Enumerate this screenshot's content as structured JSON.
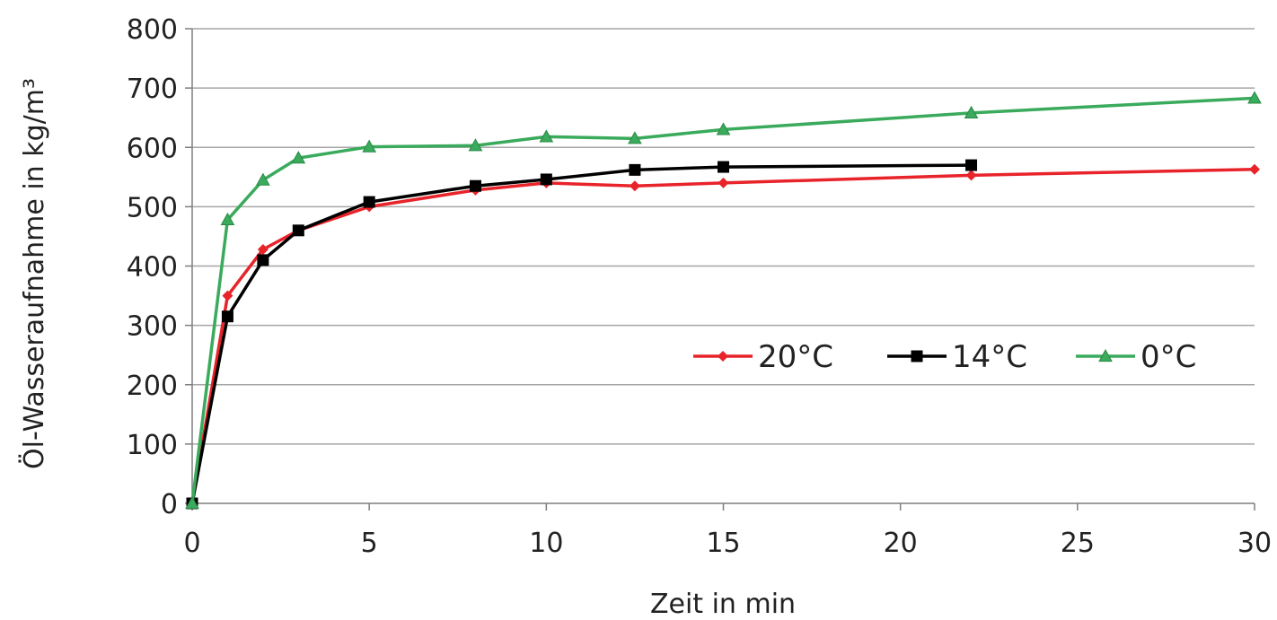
{
  "chart_data": {
    "type": "line",
    "title": "",
    "xlabel": "Zeit in min",
    "ylabel": "Öl-Wasseraufnahme in kg/m³",
    "xlim": [
      0,
      30
    ],
    "ylim": [
      0,
      800
    ],
    "xticks": [
      0,
      5,
      10,
      15,
      20,
      25,
      30
    ],
    "yticks": [
      0,
      100,
      200,
      300,
      400,
      500,
      600,
      700,
      800
    ],
    "grid": "horizontal",
    "legend_position": "right-middle",
    "series": [
      {
        "name": "20°C",
        "color": "#e8232a",
        "marker": "diamond",
        "points": [
          [
            0,
            0
          ],
          [
            1,
            350
          ],
          [
            2,
            428
          ],
          [
            3,
            460
          ],
          [
            5,
            500
          ],
          [
            8,
            528
          ],
          [
            10,
            540
          ],
          [
            12.5,
            535
          ],
          [
            15,
            540
          ],
          [
            22,
            553
          ],
          [
            30,
            563
          ]
        ]
      },
      {
        "name": "14°C",
        "color": "#000000",
        "marker": "square",
        "points": [
          [
            0,
            0
          ],
          [
            1,
            315
          ],
          [
            2,
            410
          ],
          [
            3,
            460
          ],
          [
            5,
            508
          ],
          [
            8,
            535
          ],
          [
            10,
            546
          ],
          [
            12.5,
            562
          ],
          [
            15,
            567
          ],
          [
            22,
            570
          ]
        ]
      },
      {
        "name": "0°C",
        "color": "#3aaa5c",
        "marker": "triangle",
        "points": [
          [
            0,
            0
          ],
          [
            1,
            478
          ],
          [
            2,
            545
          ],
          [
            3,
            582
          ],
          [
            5,
            601
          ],
          [
            8,
            603
          ],
          [
            10,
            618
          ],
          [
            12.5,
            615
          ],
          [
            15,
            630
          ],
          [
            22,
            658
          ],
          [
            30,
            683
          ]
        ]
      }
    ]
  }
}
